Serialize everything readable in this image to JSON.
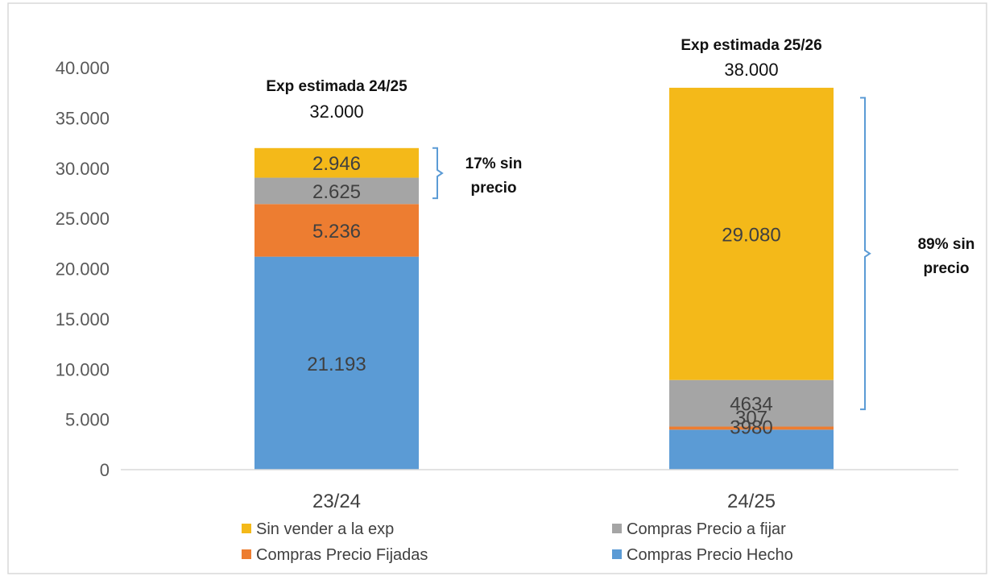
{
  "chart_data": {
    "type": "bar",
    "stacked": true,
    "categories": [
      "23/24",
      "24/25"
    ],
    "ylim": [
      0,
      40000
    ],
    "y_ticks": [
      "0",
      "5.000",
      "10.000",
      "15.000",
      "20.000",
      "25.000",
      "30.000",
      "35.000",
      "40.000"
    ],
    "grid": false,
    "legend_position": "bottom",
    "series": [
      {
        "name": "Compras Precio Hecho",
        "color": "#5b9bd5",
        "values": [
          21193,
          3980
        ],
        "labels": [
          "21.193",
          "3980"
        ]
      },
      {
        "name": "Compras Precio Fijadas",
        "color": "#ed7d31",
        "values": [
          5236,
          307
        ],
        "labels": [
          "5.236",
          "307"
        ]
      },
      {
        "name": "Compras Precio a fijar",
        "color": "#a5a5a5",
        "values": [
          2625,
          4634
        ],
        "labels": [
          "2.625",
          "4634"
        ]
      },
      {
        "name": "Sin vender a la exp",
        "color": "#f4b919",
        "values": [
          2946,
          29080
        ],
        "labels": [
          "2.946",
          "29.080"
        ]
      }
    ],
    "totals": [
      {
        "title": "Exp estimada 24/25",
        "value": 32000,
        "label": "32.000"
      },
      {
        "title": "Exp estimada 25/26",
        "value": 38000,
        "label": "38.000"
      }
    ],
    "annotations": [
      {
        "line1": "17% sin",
        "line2": "precio",
        "bracket_from": 27000,
        "bracket_to": 32000
      },
      {
        "line1": "89% sin",
        "line2": "precio",
        "bracket_from": 6000,
        "bracket_to": 37000
      }
    ],
    "legend_order": [
      "Sin vender a la exp",
      "Compras Precio a fijar",
      "Compras Precio Fijadas",
      "Compras Precio Hecho"
    ],
    "colors": {
      "axis": "#d9d9d9",
      "bracket": "#5b9bd5",
      "border": "#d9d9d9"
    }
  }
}
